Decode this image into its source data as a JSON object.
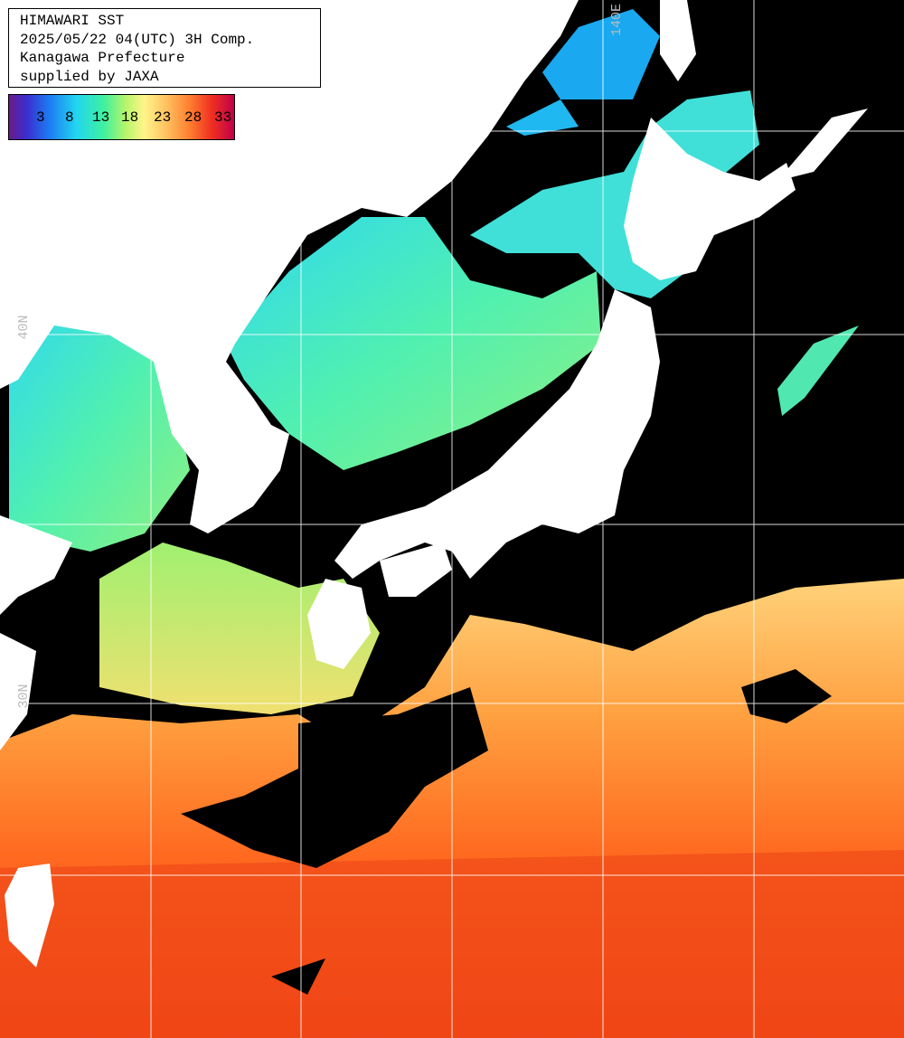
{
  "header": {
    "lines": [
      "HIMAWARI SST",
      "2025/05/22 04(UTC) 3H Comp.",
      "Kanagawa Prefecture",
      "supplied by JAXA"
    ]
  },
  "legend": {
    "ticks": [
      3,
      8,
      13,
      18,
      23,
      28,
      33
    ]
  },
  "grid_labels": {
    "lon": [
      "140E"
    ],
    "lat": [
      "40N",
      "30N"
    ]
  }
}
